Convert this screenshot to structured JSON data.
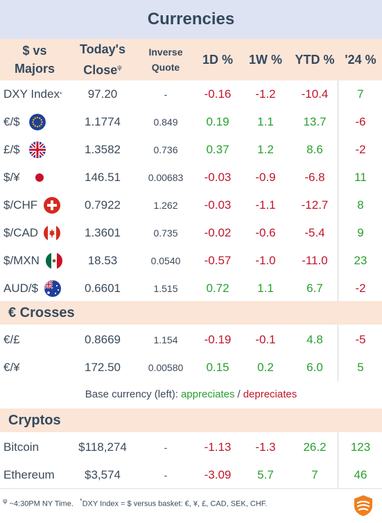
{
  "title": "Currencies",
  "headers": {
    "pair_line1": "$ vs",
    "pair_line2": "Majors",
    "close_line1": "Today's",
    "close_line2": "Close",
    "close_sup": "ψ",
    "inverse_line1": "Inverse",
    "inverse_line2": "Quote",
    "d1": "1D %",
    "w1": "1W %",
    "ytd": "YTD %",
    "y24": "'24 %"
  },
  "majors": [
    {
      "label": "DXY Index",
      "sup": "*",
      "close": "97.20",
      "inverse": "-",
      "d1": "-0.16",
      "w1": "-1.2",
      "ytd": "-10.4",
      "y24": "7",
      "flag": "none"
    },
    {
      "label": "€/$",
      "close": "1.1774",
      "inverse": "0.849",
      "d1": "0.19",
      "w1": "1.1",
      "ytd": "13.7",
      "y24": "-6",
      "flag": "eu-flag-icon"
    },
    {
      "label": "£/$",
      "close": "1.3582",
      "inverse": "0.736",
      "d1": "0.37",
      "w1": "1.2",
      "ytd": "8.6",
      "y24": "-2",
      "flag": "uk-flag-icon"
    },
    {
      "label": "$/¥",
      "close": "146.51",
      "inverse": "0.00683",
      "d1": "-0.03",
      "w1": "-0.9",
      "ytd": "-6.8",
      "y24": "11",
      "flag": "japan-flag-icon"
    },
    {
      "label": "$/CHF",
      "close": "0.7922",
      "inverse": "1.262",
      "d1": "-0.03",
      "w1": "-1.1",
      "ytd": "-12.7",
      "y24": "8",
      "flag": "swiss-flag-icon"
    },
    {
      "label": "$/CAD",
      "close": "1.3601",
      "inverse": "0.735",
      "d1": "-0.02",
      "w1": "-0.6",
      "ytd": "-5.4",
      "y24": "9",
      "flag": "canada-flag-icon"
    },
    {
      "label": "$/MXN",
      "close": "18.53",
      "inverse": "0.0540",
      "d1": "-0.57",
      "w1": "-1.0",
      "ytd": "-11.0",
      "y24": "23",
      "flag": "mexico-flag-icon"
    },
    {
      "label": "AUD/$",
      "close": "0.6601",
      "inverse": "1.515",
      "d1": "0.72",
      "w1": "1.1",
      "ytd": "6.7",
      "y24": "-2",
      "flag": "australia-flag-icon"
    }
  ],
  "crosses_title": "€ Crosses",
  "crosses": [
    {
      "label": "€/£",
      "close": "0.8669",
      "inverse": "1.154",
      "d1": "-0.19",
      "w1": "-0.1",
      "ytd": "4.8",
      "y24": "-5"
    },
    {
      "label": "€/¥",
      "close": "172.50",
      "inverse": "0.00580",
      "d1": "0.15",
      "w1": "0.2",
      "ytd": "6.0",
      "y24": "5"
    }
  ],
  "note": {
    "prefix": "Base currency (left):",
    "appreciates": "appreciates",
    "sep": "/",
    "depreciates": "depreciates"
  },
  "cryptos_title": "Cryptos",
  "cryptos": [
    {
      "label": "Bitcoin",
      "close": "$118,274",
      "inverse": "-",
      "d1": "-1.13",
      "w1": "-1.3",
      "ytd": "26.2",
      "y24": "123"
    },
    {
      "label": "Ethereum",
      "close": "$3,574",
      "inverse": "-",
      "d1": "-3.09",
      "w1": "5.7",
      "ytd": "7",
      "y24": "46"
    }
  ],
  "footer": {
    "sym1": "ψ",
    "text1": " ~4:30PM NY Time.",
    "sym2": "*",
    "text2": "DXY Index = $ versus basket: €, ¥, £, CAD, SEK, CHF.",
    "logo": "brand-logo-icon"
  },
  "colors": {
    "positive": "#27a02d",
    "negative": "#c0152b",
    "header_bg": "#fbe5d6",
    "title_bg": "#dde3f2"
  }
}
